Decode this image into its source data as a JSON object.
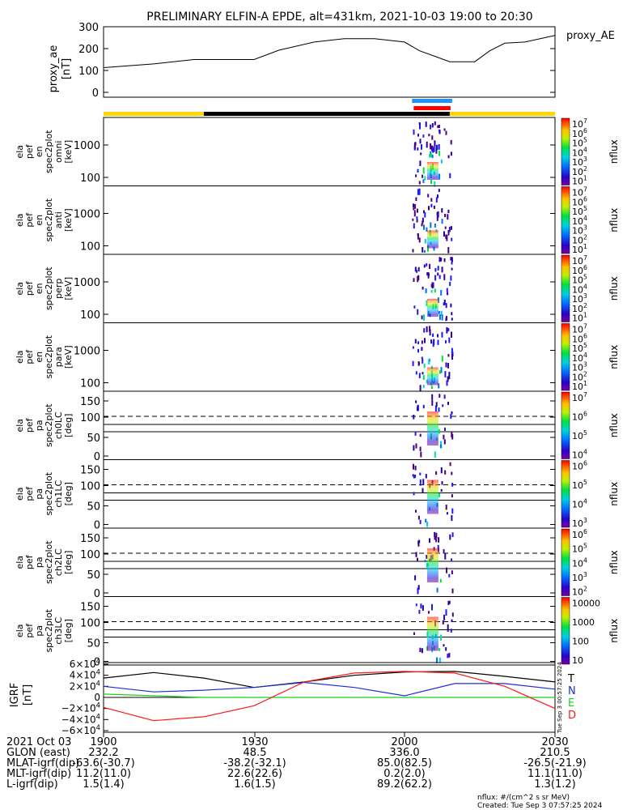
{
  "title": "PRELIMINARY ELFIN-A EPDE, alt=431km, 2021-10-03 19:00 to 20:30",
  "proxy_ae": {
    "label": "proxy_AE",
    "ylabel": [
      "proxy_ae",
      "[nT]"
    ],
    "yticks": [
      "300",
      "200",
      "100",
      "0"
    ],
    "ylim": [
      0,
      300
    ],
    "series_minutes": [
      0,
      10,
      18,
      26,
      30,
      35,
      42,
      48,
      54,
      60,
      63,
      66,
      69,
      71,
      74,
      77,
      80,
      84,
      90
    ],
    "series_values": [
      113,
      130,
      150,
      150,
      150,
      193,
      230,
      245,
      245,
      230,
      190,
      165,
      140,
      140,
      140,
      190,
      225,
      230,
      260
    ]
  },
  "orbit_bar": {
    "colors": {
      "yellow": "#ffd700",
      "black": "#000000",
      "blue": "#1e90ff",
      "red": "#ff0000"
    },
    "black_span_minutes": [
      20,
      69
    ],
    "science_span_minutes": [
      61.5,
      69.5
    ]
  },
  "spec_panels": [
    {
      "lines": [
        "ela",
        "pef",
        "en",
        "spec2plot",
        "omni",
        "[keV]"
      ],
      "yticks": [
        "1000",
        "100"
      ],
      "cbar_ticks": [
        "10^7",
        "10^6",
        "10^5",
        "10^4",
        "10^3",
        "10^2",
        "10^1"
      ],
      "cbar_label": "nflux"
    },
    {
      "lines": [
        "ela",
        "pef",
        "en",
        "spec2plot",
        "anti",
        "[keV]"
      ],
      "yticks": [
        "1000",
        "100"
      ],
      "cbar_ticks": [
        "10^7",
        "10^6",
        "10^5",
        "10^4",
        "10^3",
        "10^2",
        "10^1"
      ],
      "cbar_label": "nflux"
    },
    {
      "lines": [
        "ela",
        "pef",
        "en",
        "spec2plot",
        "perp",
        "[keV]"
      ],
      "yticks": [
        "1000",
        "100"
      ],
      "cbar_ticks": [
        "10^7",
        "10^6",
        "10^5",
        "10^4",
        "10^3",
        "10^2",
        "10^1"
      ],
      "cbar_label": "nflux"
    },
    {
      "lines": [
        "ela",
        "pef",
        "en",
        "spec2plot",
        "para",
        "[keV]"
      ],
      "yticks": [
        "1000",
        "100"
      ],
      "cbar_ticks": [
        "10^7",
        "10^6",
        "10^5",
        "10^4",
        "10^3",
        "10^2",
        "10^1"
      ],
      "cbar_label": "nflux"
    }
  ],
  "pa_panels": [
    {
      "lines": [
        "ela",
        "pef",
        "pa",
        "spec2plot",
        "ch0LC",
        "[deg]"
      ],
      "yticks": [
        "150",
        "100",
        "50",
        "0"
      ],
      "cbar_ticks": [
        "10^7",
        "10^6",
        "10^5",
        "10^4"
      ],
      "cbar_label": "nflux"
    },
    {
      "lines": [
        "ela",
        "pef",
        "pa",
        "spec2plot",
        "ch1LC",
        "[deg]"
      ],
      "yticks": [
        "150",
        "100",
        "50",
        "0"
      ],
      "cbar_ticks": [
        "10^6",
        "10^5",
        "10^4",
        "10^3"
      ],
      "cbar_label": "nflux"
    },
    {
      "lines": [
        "ela",
        "pef",
        "pa",
        "spec2plot",
        "ch2LC",
        "[deg]"
      ],
      "yticks": [
        "150",
        "100",
        "50",
        "0"
      ],
      "cbar_ticks": [
        "10^6",
        "10^5",
        "10^4",
        "10^3",
        "10^2"
      ],
      "cbar_label": "nflux"
    },
    {
      "lines": [
        "ela",
        "pef",
        "pa",
        "spec2plot",
        "ch3LC",
        "[deg]"
      ],
      "yticks": [
        "150",
        "100",
        "50",
        "0"
      ],
      "cbar_ticks": [
        "10000",
        "1000",
        "100",
        "10"
      ],
      "cbar_label": "nflux"
    }
  ],
  "igrf": {
    "ylabel": [
      "IGRF",
      "[nT]"
    ],
    "yticks": [
      "6×10^4",
      "4×10^4",
      "2×10^4",
      "0",
      "−2×10^4",
      "−4×10^4",
      "−6×10^4"
    ],
    "ylim": [
      -60000,
      60000
    ],
    "legend": [
      {
        "name": "T",
        "color": "#000000"
      },
      {
        "name": "N",
        "color": "#1c2fd6"
      },
      {
        "name": "E",
        "color": "#1ad11a"
      },
      {
        "name": "D",
        "color": "#ff1a1a"
      }
    ],
    "x": [
      0,
      10,
      20,
      30,
      40,
      50,
      60,
      70,
      80,
      90
    ],
    "T": [
      35000,
      45000,
      35000,
      18000,
      28000,
      40000,
      46000,
      47000,
      38000,
      28000
    ],
    "N": [
      20000,
      10000,
      13000,
      18000,
      27000,
      18000,
      3000,
      25000,
      25000,
      15000
    ],
    "E": [
      6000,
      3000,
      0,
      0,
      0,
      0,
      0,
      0,
      0,
      0
    ],
    "D": [
      -18000,
      -42000,
      -35000,
      -15000,
      28000,
      44000,
      47000,
      44000,
      20000,
      -20000
    ]
  },
  "creation_stamp": "Tue Sep  3 00:57:25 2024",
  "ephemeris": {
    "header_label": "2021 Oct 03",
    "row_labels": [
      "GLON (east)",
      "MLAT-igrf(dip)",
      "MLT-igrf(dip)",
      "L-igrf(dip)"
    ],
    "columns": [
      {
        "time": "1900",
        "values": [
          "232.2",
          "-63.6(-30.7)",
          "11.2(11.0)",
          "1.5(1.4)"
        ]
      },
      {
        "time": "1930",
        "values": [
          "48.5",
          "-38.2(-32.1)",
          "22.6(22.6)",
          "1.6(1.5)"
        ]
      },
      {
        "time": "2000",
        "values": [
          "336.0",
          "85.0(82.5)",
          "0.2(2.0)",
          "89.2(62.2)"
        ]
      },
      {
        "time": "2030",
        "values": [
          "210.5",
          "-26.5(-21.9)",
          "11.1(11.0)",
          "1.3(1.2)"
        ]
      }
    ]
  },
  "footer": {
    "units": "nflux: #/(cm^2 s sr MeV)",
    "created": "Created: Tue Sep  3 07:57:25 2024"
  }
}
